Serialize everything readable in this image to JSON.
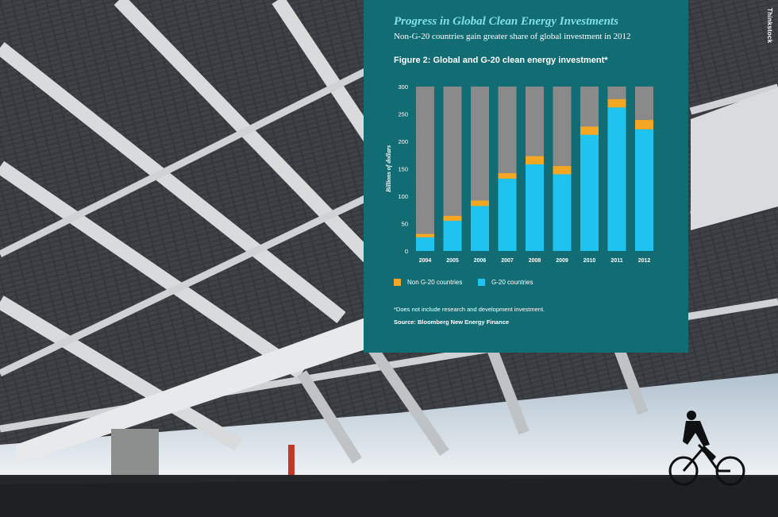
{
  "photo_credit": "Thinkstock",
  "panel": {
    "heading": "Progress in Global Clean Energy Investments",
    "subheading": "Non-G-20 countries gain greater share of global investment in 2012",
    "figure_title": "Figure 2: Global and G-20 clean energy investment*",
    "footnote": "*Does not include research and development investment.",
    "source": "Source: Bloomberg New Energy Finance"
  },
  "colors": {
    "panel_bg": "#126c74",
    "heading": "#7fe0e8",
    "g20": "#1ec3ef",
    "non_g20": "#f5a623",
    "bar_background": "#8a8a8a"
  },
  "chart_data": {
    "type": "bar",
    "stacked": true,
    "categories": [
      "2004",
      "2005",
      "2006",
      "2007",
      "2008",
      "2009",
      "2010",
      "2011",
      "2012"
    ],
    "series": [
      {
        "name": "G-20 countries",
        "values": [
          25,
          55,
          82,
          132,
          158,
          140,
          212,
          262,
          222
        ]
      },
      {
        "name": "Non G-20 countries",
        "values": [
          6,
          9,
          10,
          10,
          15,
          15,
          15,
          15,
          17
        ]
      }
    ],
    "ylabel": "Billions of dollars",
    "xlabel": "",
    "ylim": [
      0,
      300
    ],
    "yticks": [
      0,
      50,
      100,
      150,
      200,
      250,
      300
    ],
    "grid": false,
    "background_bars_to": 300,
    "legend_position": "bottom-left"
  }
}
